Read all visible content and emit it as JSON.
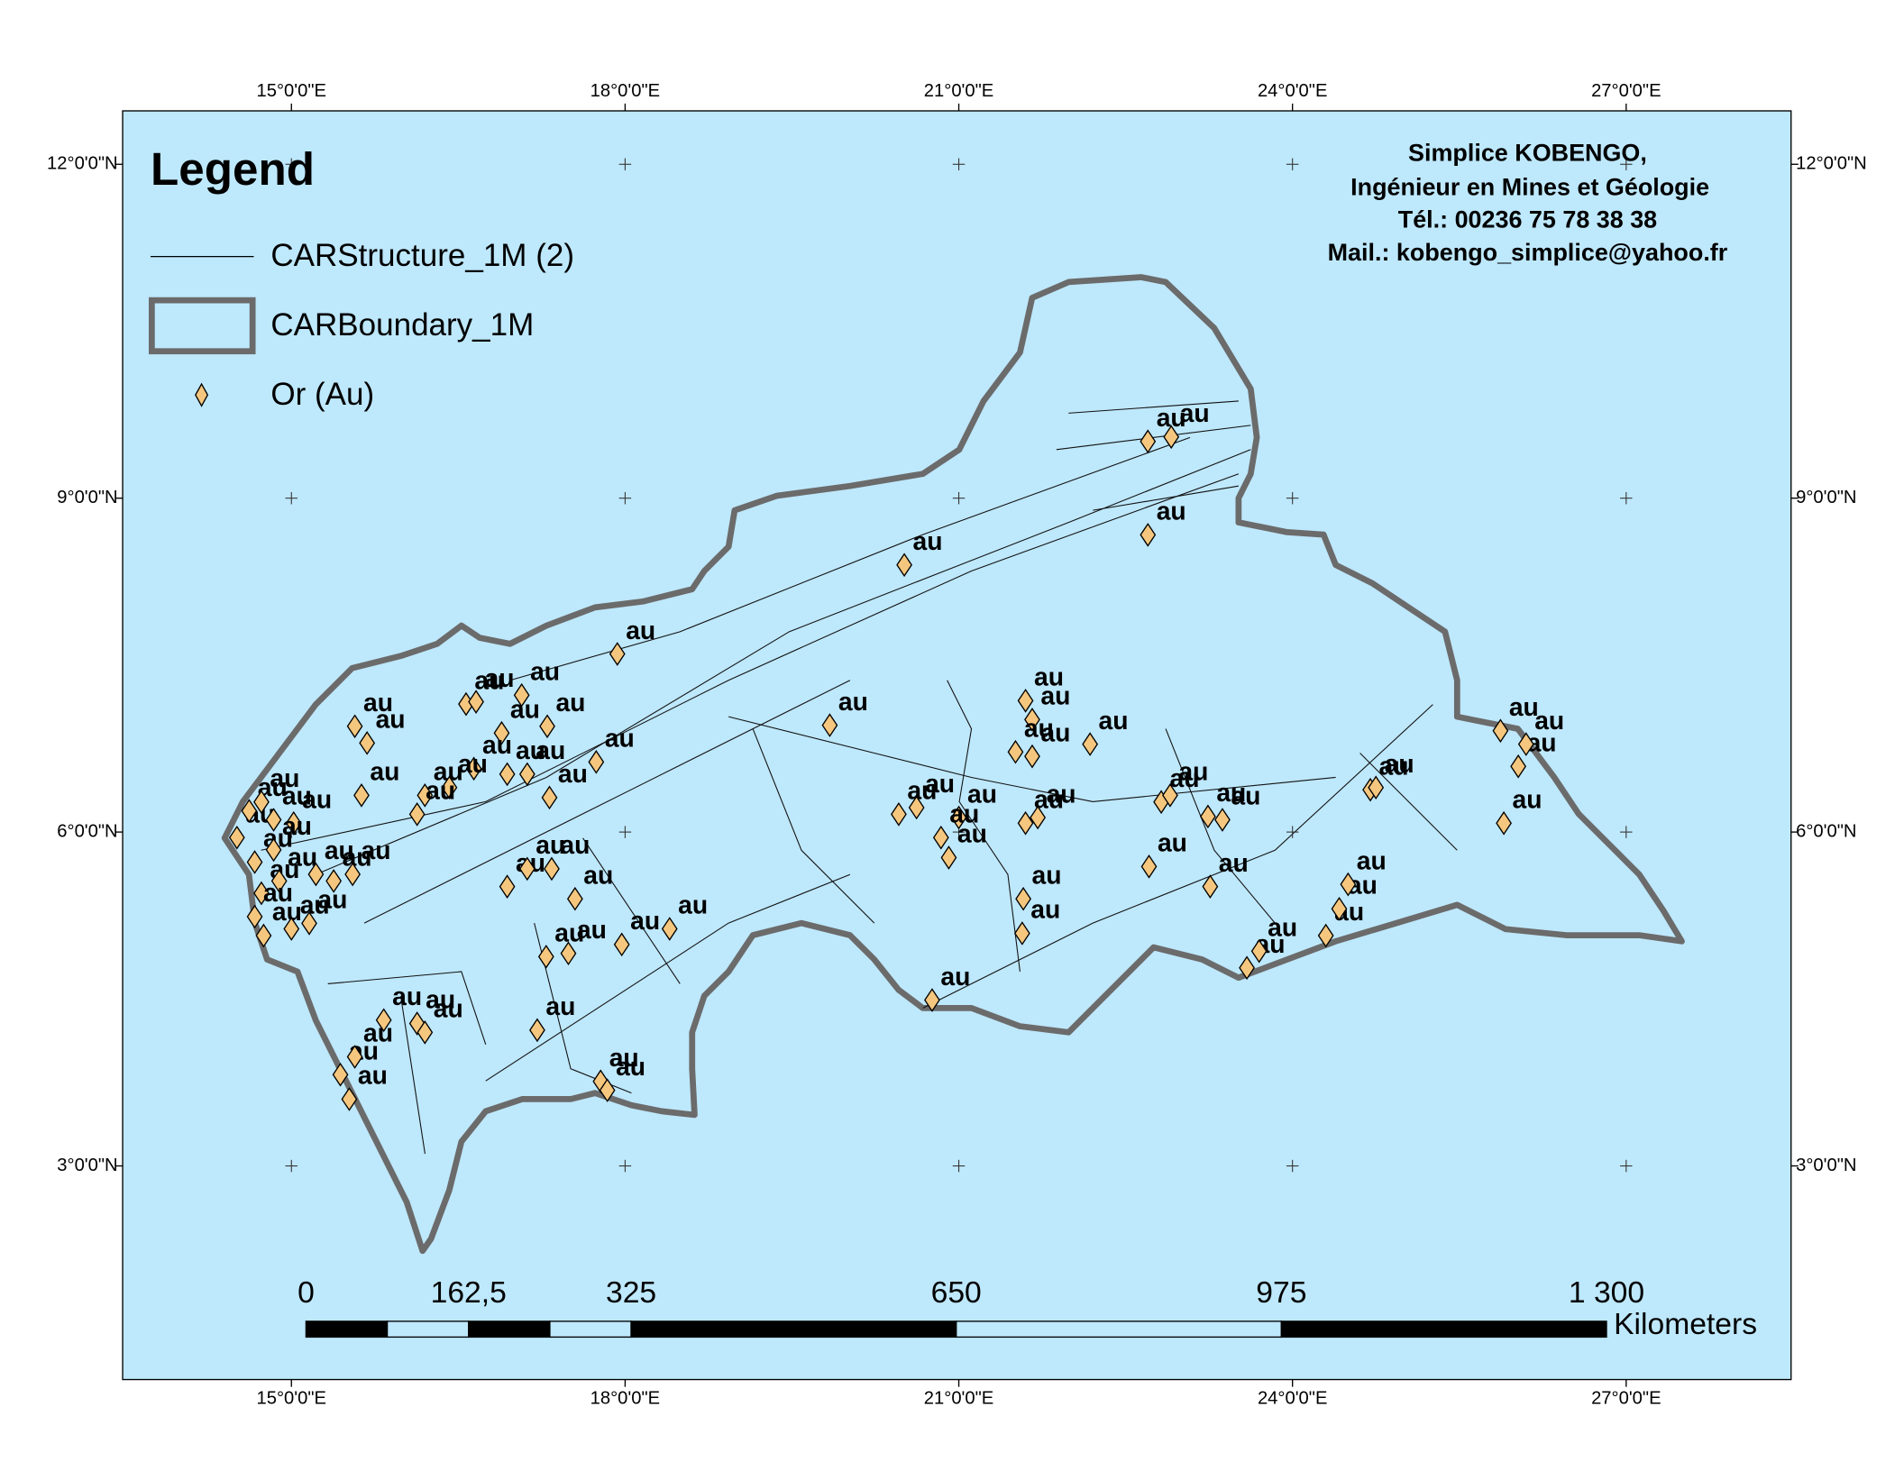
{
  "map": {
    "lon_ticks": [
      {
        "value": 15,
        "label": "15°0'0\"E"
      },
      {
        "value": 18,
        "label": "18°0'0\"E"
      },
      {
        "value": 21,
        "label": "21°0'0\"E"
      },
      {
        "value": 24,
        "label": "24°0'0\"E"
      },
      {
        "value": 27,
        "label": "27°0'0\"E"
      }
    ],
    "lat_ticks": [
      {
        "value": 12,
        "label": "12°0'0\"N"
      },
      {
        "value": 9,
        "label": "9°0'0\"N"
      },
      {
        "value": 6,
        "label": "6°0'0\"N"
      },
      {
        "value": 3,
        "label": "3°0'0\"N"
      }
    ],
    "points": [
      {
        "lon": 22.7,
        "lat": 9.51,
        "label": "au"
      },
      {
        "lon": 22.91,
        "lat": 9.55,
        "label": "au"
      },
      {
        "lon": 22.7,
        "lat": 8.67,
        "label": "au"
      },
      {
        "lon": 20.51,
        "lat": 8.4,
        "label": "au"
      },
      {
        "lon": 17.93,
        "lat": 7.6,
        "label": "au"
      },
      {
        "lon": 16.57,
        "lat": 7.15,
        "label": "au"
      },
      {
        "lon": 16.66,
        "lat": 7.17,
        "label": "au"
      },
      {
        "lon": 17.07,
        "lat": 7.23,
        "label": "au"
      },
      {
        "lon": 16.89,
        "lat": 6.89,
        "label": "au"
      },
      {
        "lon": 17.3,
        "lat": 6.95,
        "label": "au"
      },
      {
        "lon": 15.57,
        "lat": 6.95,
        "label": "au"
      },
      {
        "lon": 15.68,
        "lat": 6.8,
        "label": "au"
      },
      {
        "lon": 17.74,
        "lat": 6.63,
        "label": "au"
      },
      {
        "lon": 17.32,
        "lat": 6.31,
        "label": "au"
      },
      {
        "lon": 16.94,
        "lat": 6.52,
        "label": "au"
      },
      {
        "lon": 17.12,
        "lat": 6.52,
        "label": "au"
      },
      {
        "lon": 16.64,
        "lat": 6.57,
        "label": "au"
      },
      {
        "lon": 16.42,
        "lat": 6.4,
        "label": "au"
      },
      {
        "lon": 16.2,
        "lat": 6.33,
        "label": "au"
      },
      {
        "lon": 16.13,
        "lat": 6.16,
        "label": "au"
      },
      {
        "lon": 15.63,
        "lat": 6.33,
        "label": "au"
      },
      {
        "lon": 14.51,
        "lat": 5.95,
        "label": "au"
      },
      {
        "lon": 14.62,
        "lat": 6.19,
        "label": "au"
      },
      {
        "lon": 14.73,
        "lat": 6.27,
        "label": "au"
      },
      {
        "lon": 14.84,
        "lat": 6.11,
        "label": "au"
      },
      {
        "lon": 15.02,
        "lat": 6.08,
        "label": "au"
      },
      {
        "lon": 14.67,
        "lat": 5.73,
        "label": "au"
      },
      {
        "lon": 14.84,
        "lat": 5.84,
        "label": "au"
      },
      {
        "lon": 14.73,
        "lat": 5.45,
        "label": "au"
      },
      {
        "lon": 14.89,
        "lat": 5.56,
        "label": "au"
      },
      {
        "lon": 14.67,
        "lat": 5.24,
        "label": "au"
      },
      {
        "lon": 14.75,
        "lat": 5.07,
        "label": "au"
      },
      {
        "lon": 15.0,
        "lat": 5.13,
        "label": "au"
      },
      {
        "lon": 15.16,
        "lat": 5.18,
        "label": "au"
      },
      {
        "lon": 15.22,
        "lat": 5.62,
        "label": "au"
      },
      {
        "lon": 15.38,
        "lat": 5.56,
        "label": "au"
      },
      {
        "lon": 15.55,
        "lat": 5.62,
        "label": "au"
      },
      {
        "lon": 16.94,
        "lat": 5.51,
        "label": "au"
      },
      {
        "lon": 17.12,
        "lat": 5.67,
        "label": "au"
      },
      {
        "lon": 17.34,
        "lat": 5.67,
        "label": "au"
      },
      {
        "lon": 17.55,
        "lat": 5.4,
        "label": "au"
      },
      {
        "lon": 17.97,
        "lat": 4.99,
        "label": "au"
      },
      {
        "lon": 17.29,
        "lat": 4.88,
        "label": "au"
      },
      {
        "lon": 17.49,
        "lat": 4.91,
        "label": "au"
      },
      {
        "lon": 18.4,
        "lat": 5.13,
        "label": "au"
      },
      {
        "lon": 17.21,
        "lat": 4.22,
        "label": "au"
      },
      {
        "lon": 15.83,
        "lat": 4.31,
        "label": "au"
      },
      {
        "lon": 16.13,
        "lat": 4.28,
        "label": "au"
      },
      {
        "lon": 16.2,
        "lat": 4.2,
        "label": "au"
      },
      {
        "lon": 15.44,
        "lat": 3.82,
        "label": "au"
      },
      {
        "lon": 15.57,
        "lat": 3.98,
        "label": "au"
      },
      {
        "lon": 15.52,
        "lat": 3.6,
        "label": "au"
      },
      {
        "lon": 17.78,
        "lat": 3.76,
        "label": "au"
      },
      {
        "lon": 17.84,
        "lat": 3.68,
        "label": "au"
      },
      {
        "lon": 19.84,
        "lat": 6.96,
        "label": "au"
      },
      {
        "lon": 20.46,
        "lat": 6.16,
        "label": "au"
      },
      {
        "lon": 20.62,
        "lat": 6.22,
        "label": "au"
      },
      {
        "lon": 21.0,
        "lat": 6.13,
        "label": "au"
      },
      {
        "lon": 20.84,
        "lat": 5.95,
        "label": "au"
      },
      {
        "lon": 20.91,
        "lat": 5.77,
        "label": "au"
      },
      {
        "lon": 21.6,
        "lat": 7.18,
        "label": "au"
      },
      {
        "lon": 21.66,
        "lat": 7.01,
        "label": "au"
      },
      {
        "lon": 21.51,
        "lat": 6.72,
        "label": "au"
      },
      {
        "lon": 21.66,
        "lat": 6.68,
        "label": "au"
      },
      {
        "lon": 21.6,
        "lat": 6.08,
        "label": "au"
      },
      {
        "lon": 21.71,
        "lat": 6.13,
        "label": "au"
      },
      {
        "lon": 22.18,
        "lat": 6.79,
        "label": "au"
      },
      {
        "lon": 21.58,
        "lat": 5.4,
        "label": "au"
      },
      {
        "lon": 21.57,
        "lat": 5.09,
        "label": "au"
      },
      {
        "lon": 20.76,
        "lat": 4.49,
        "label": "au"
      },
      {
        "lon": 22.71,
        "lat": 5.69,
        "label": "au"
      },
      {
        "lon": 22.82,
        "lat": 6.27,
        "label": "au"
      },
      {
        "lon": 22.9,
        "lat": 6.33,
        "label": "au"
      },
      {
        "lon": 23.24,
        "lat": 6.14,
        "label": "au"
      },
      {
        "lon": 23.37,
        "lat": 6.11,
        "label": "au"
      },
      {
        "lon": 23.26,
        "lat": 5.51,
        "label": "au"
      },
      {
        "lon": 23.59,
        "lat": 4.78,
        "label": "au"
      },
      {
        "lon": 23.7,
        "lat": 4.93,
        "label": "au"
      },
      {
        "lon": 24.3,
        "lat": 5.07,
        "label": "au"
      },
      {
        "lon": 24.42,
        "lat": 5.31,
        "label": "au"
      },
      {
        "lon": 24.5,
        "lat": 5.53,
        "label": "au"
      },
      {
        "lon": 24.7,
        "lat": 6.38,
        "label": "au"
      },
      {
        "lon": 24.75,
        "lat": 6.4,
        "label": "au"
      },
      {
        "lon": 25.87,
        "lat": 6.91,
        "label": "au"
      },
      {
        "lon": 26.03,
        "lat": 6.59,
        "label": "au"
      },
      {
        "lon": 26.1,
        "lat": 6.79,
        "label": "au"
      },
      {
        "lon": 25.9,
        "lat": 6.08,
        "label": "au"
      }
    ]
  },
  "legend": {
    "title": "Legend",
    "items": [
      "CARStructure_1M (2)",
      "CARBoundary_1M",
      "Or (Au)"
    ]
  },
  "credit": {
    "lines": [
      "Simplice KOBENGO,",
      "Ingénieur en Mines et Géologie",
      "Tél.: 00236 75 78 38 38",
      "Mail.: kobengo_simplice@yahoo.fr"
    ]
  },
  "scale_bar": {
    "ticks": [
      0,
      {
        "value": 162.5,
        "label": "162,5"
      },
      325,
      650,
      975,
      {
        "value": 1300,
        "label": "1 300"
      }
    ],
    "unit": "Kilometers"
  }
}
